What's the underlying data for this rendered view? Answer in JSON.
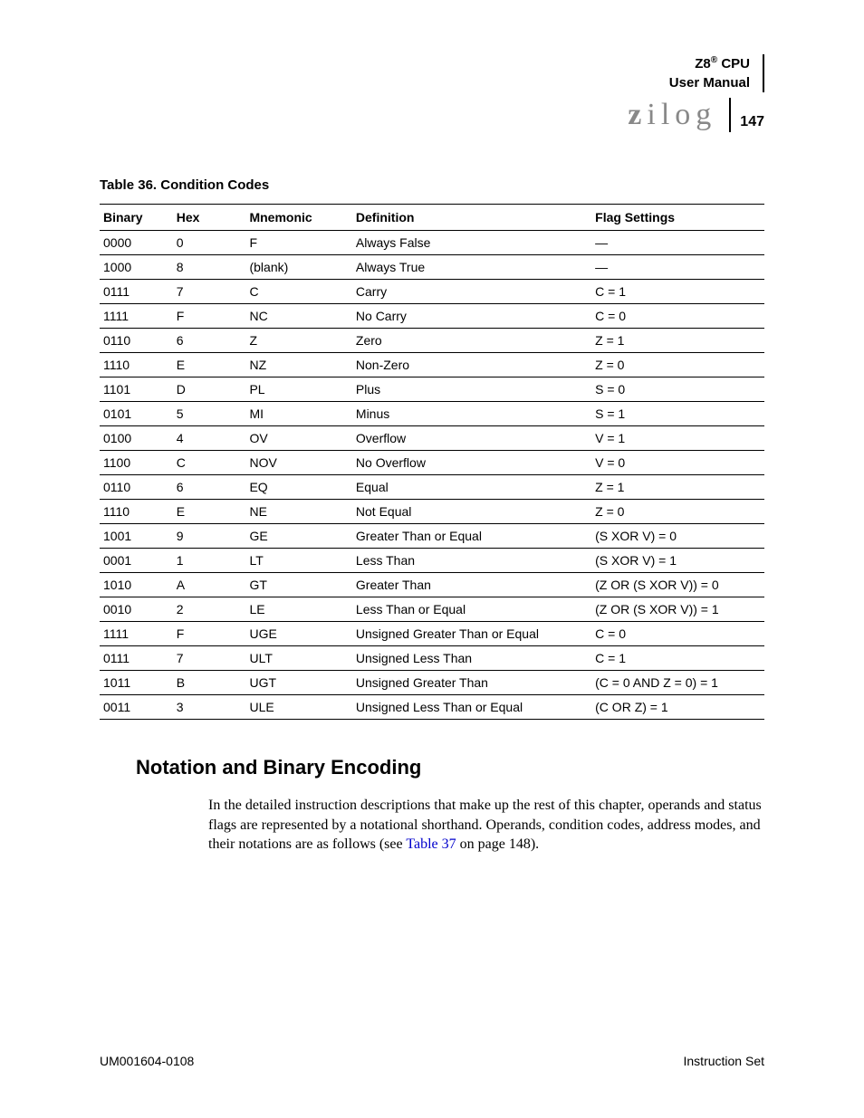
{
  "header": {
    "product_line1_prefix": "Z8",
    "product_line1_sup": "®",
    "product_line1_suffix": " CPU",
    "product_line2": "User Manual",
    "logo_text": "zilog",
    "page_number": "147"
  },
  "table": {
    "caption": "Table 36. Condition Codes",
    "columns": [
      "Binary",
      "Hex",
      "Mnemonic",
      "Definition",
      "Flag Settings"
    ],
    "rows": [
      [
        "0000",
        "0",
        "F",
        "Always False",
        "—"
      ],
      [
        "1000",
        "8",
        "(blank)",
        "Always True",
        "—"
      ],
      [
        "0111",
        "7",
        "C",
        "Carry",
        "C = 1"
      ],
      [
        "1111",
        "F",
        "NC",
        "No Carry",
        "C = 0"
      ],
      [
        "0110",
        "6",
        "Z",
        "Zero",
        "Z = 1"
      ],
      [
        "1110",
        "E",
        "NZ",
        "Non-Zero",
        "Z = 0"
      ],
      [
        "1101",
        "D",
        "PL",
        "Plus",
        "S = 0"
      ],
      [
        "0101",
        "5",
        "MI",
        "Minus",
        "S = 1"
      ],
      [
        "0100",
        "4",
        "OV",
        "Overflow",
        "V = 1"
      ],
      [
        "1100",
        "C",
        "NOV",
        "No Overflow",
        "V = 0"
      ],
      [
        "0110",
        "6",
        "EQ",
        "Equal",
        "Z = 1"
      ],
      [
        "1110",
        "E",
        "NE",
        "Not Equal",
        "Z = 0"
      ],
      [
        "1001",
        "9",
        "GE",
        "Greater Than or Equal",
        "(S XOR V) = 0"
      ],
      [
        "0001",
        "1",
        "LT",
        "Less Than",
        "(S XOR V) = 1"
      ],
      [
        "1010",
        "A",
        "GT",
        "Greater Than",
        "(Z OR (S XOR V)) = 0"
      ],
      [
        "0010",
        "2",
        "LE",
        "Less Than or Equal",
        "(Z OR (S XOR V)) = 1"
      ],
      [
        "1111",
        "F",
        "UGE",
        "Unsigned Greater Than or Equal",
        "C = 0"
      ],
      [
        "0111",
        "7",
        "ULT",
        "Unsigned Less Than",
        "C = 1"
      ],
      [
        "1011",
        "B",
        "UGT",
        "Unsigned Greater Than",
        "(C = 0 AND Z = 0) = 1"
      ],
      [
        "0011",
        "3",
        "ULE",
        "Unsigned Less Than or Equal",
        "(C OR Z) = 1"
      ]
    ]
  },
  "section": {
    "heading": "Notation and Binary Encoding",
    "para_part1": "In the detailed instruction descriptions that make up the rest of this chapter, operands and status flags are represented by a notational shorthand. Operands, condition codes, address modes, and their notations are as follows (see ",
    "para_link": "Table 37",
    "para_part2": " on page 148)."
  },
  "footer": {
    "left": "UM001604-0108",
    "right": "Instruction Set"
  }
}
